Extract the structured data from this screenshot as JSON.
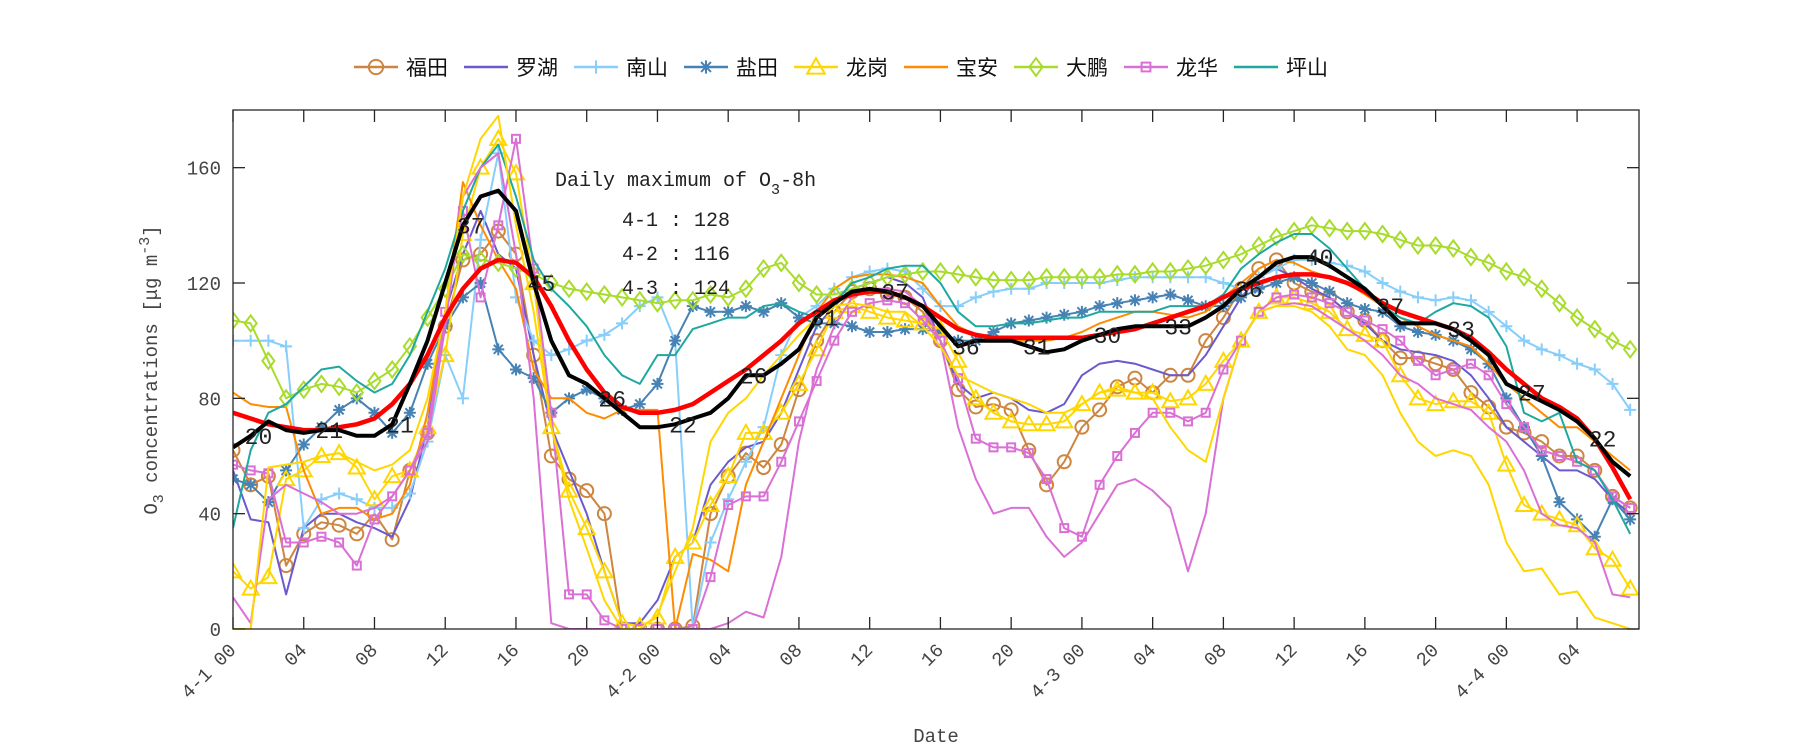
{
  "chart_data": {
    "type": "line",
    "xlabel": "Date",
    "ylabel": "O3 concentrations [μg m-3]",
    "ylabel_parts": {
      "main": "O",
      "sub": "3",
      "mid": " concentrations [",
      "mu": "μg m",
      "sup": "-3",
      "end": "]"
    },
    "ylim": [
      0,
      180
    ],
    "yticks": [
      0,
      40,
      80,
      120,
      160
    ],
    "x_unit": "hour from 4-1 00",
    "xticks": [
      {
        "hour": 0,
        "label": "4-1 00"
      },
      {
        "hour": 4,
        "label": "04"
      },
      {
        "hour": 8,
        "label": "08"
      },
      {
        "hour": 12,
        "label": "12"
      },
      {
        "hour": 16,
        "label": "16"
      },
      {
        "hour": 20,
        "label": "20"
      },
      {
        "hour": 24,
        "label": "4-2 00"
      },
      {
        "hour": 28,
        "label": "04"
      },
      {
        "hour": 32,
        "label": "08"
      },
      {
        "hour": 36,
        "label": "12"
      },
      {
        "hour": 40,
        "label": "16"
      },
      {
        "hour": 44,
        "label": "20"
      },
      {
        "hour": 48,
        "label": "4-3 00"
      },
      {
        "hour": 52,
        "label": "04"
      },
      {
        "hour": 56,
        "label": "08"
      },
      {
        "hour": 60,
        "label": "12"
      },
      {
        "hour": 64,
        "label": "16"
      },
      {
        "hour": 68,
        "label": "20"
      },
      {
        "hour": 72,
        "label": "4-4 00"
      },
      {
        "hour": 76,
        "label": "04"
      }
    ],
    "grid": false,
    "legend_position": "top",
    "series": [
      {
        "name": "福田",
        "color": "#CD853F",
        "marker": "circle",
        "values": [
          62,
          50,
          53,
          22,
          33,
          37,
          36,
          33,
          40,
          31,
          55,
          68,
          105,
          128,
          130,
          138,
          130,
          95,
          60,
          52,
          48,
          40,
          0,
          0,
          0,
          0,
          1,
          40,
          53,
          61,
          56,
          64,
          83,
          100,
          110,
          117,
          118,
          116,
          115,
          110,
          100,
          83,
          77,
          78,
          76,
          62,
          50,
          58,
          70,
          76,
          84,
          87,
          82,
          88,
          88,
          100,
          108,
          118,
          125,
          128,
          120,
          117,
          115,
          110,
          107,
          100,
          94,
          94,
          92,
          90,
          82,
          77,
          70,
          68,
          65,
          60,
          60,
          55,
          46,
          42
        ]
      },
      {
        "name": "罗湖",
        "color": "#6A5ACD",
        "marker": "none",
        "values": [
          55,
          38,
          37,
          12,
          35,
          40,
          40,
          37,
          35,
          32,
          45,
          70,
          110,
          130,
          145,
          130,
          125,
          95,
          70,
          55,
          40,
          20,
          2,
          2,
          10,
          25,
          30,
          50,
          58,
          63,
          65,
          75,
          90,
          105,
          112,
          118,
          120,
          122,
          120,
          115,
          100,
          85,
          80,
          82,
          80,
          76,
          75,
          78,
          88,
          92,
          93,
          92,
          90,
          88,
          88,
          95,
          105,
          115,
          122,
          125,
          122,
          118,
          115,
          110,
          106,
          100,
          97,
          96,
          95,
          93,
          88,
          80,
          70,
          65,
          60,
          55,
          55,
          52,
          45,
          40
        ]
      },
      {
        "name": "南山",
        "color": "#87CEFA",
        "marker": "plus",
        "values": [
          100,
          100,
          100,
          98,
          35,
          45,
          47,
          45,
          42,
          42,
          47,
          65,
          95,
          80,
          135,
          165,
          115,
          100,
          95,
          97,
          100,
          102,
          106,
          112,
          115,
          100,
          0,
          30,
          45,
          58,
          70,
          95,
          108,
          112,
          118,
          122,
          124,
          125,
          124,
          118,
          112,
          112,
          115,
          117,
          118,
          118,
          120,
          120,
          120,
          120,
          121,
          122,
          122,
          122,
          122,
          122,
          120,
          118,
          122,
          125,
          128,
          128,
          127,
          126,
          124,
          120,
          117,
          115,
          114,
          115,
          114,
          110,
          105,
          100,
          97,
          95,
          92,
          90,
          85,
          76
        ]
      },
      {
        "name": "盐田",
        "color": "#4682B4",
        "marker": "asterisk",
        "values": [
          52,
          50,
          44,
          55,
          64,
          70,
          76,
          80,
          75,
          68,
          75,
          92,
          105,
          115,
          120,
          97,
          90,
          87,
          75,
          80,
          83,
          80,
          76,
          78,
          85,
          100,
          112,
          110,
          110,
          112,
          110,
          113,
          108,
          106,
          106,
          105,
          103,
          103,
          104,
          104,
          103,
          100,
          100,
          103,
          106,
          107,
          108,
          109,
          110,
          112,
          113,
          114,
          115,
          116,
          114,
          112,
          112,
          115,
          118,
          120,
          122,
          120,
          117,
          113,
          111,
          110,
          105,
          103,
          102,
          100,
          97,
          92,
          80,
          70,
          60,
          44,
          38,
          32,
          45,
          38
        ]
      },
      {
        "name": "龙岗",
        "color": "#FFD700",
        "marker": "triangle",
        "values": [
          20,
          14,
          18,
          52,
          55,
          60,
          61,
          56,
          45,
          53,
          55,
          70,
          95,
          137,
          160,
          170,
          158,
          120,
          70,
          48,
          35,
          20,
          2,
          1,
          4,
          25,
          30,
          43,
          53,
          68,
          68,
          75,
          85,
          97,
          110,
          112,
          110,
          108,
          107,
          106,
          104,
          93,
          80,
          75,
          72,
          71,
          71,
          72,
          78,
          82,
          83,
          82,
          82,
          79,
          80,
          85,
          93,
          100,
          110,
          115,
          115,
          113,
          110,
          104,
          102,
          100,
          88,
          80,
          78,
          79,
          79,
          75,
          57,
          43,
          40,
          38,
          36,
          28,
          24,
          14
        ]
      },
      {
        "name": "宝安",
        "color": "#FF8C00",
        "marker": "none",
        "values": [
          82,
          78,
          77,
          77,
          55,
          40,
          42,
          42,
          38,
          40,
          50,
          75,
          110,
          155,
          140,
          128,
          118,
          90,
          80,
          80,
          75,
          73,
          76,
          76,
          76,
          0,
          26,
          24,
          20,
          50,
          65,
          80,
          95,
          110,
          118,
          122,
          123,
          123,
          122,
          120,
          112,
          105,
          102,
          100,
          100,
          100,
          100,
          101,
          103,
          106,
          108,
          110,
          110,
          109,
          108,
          110,
          115,
          120,
          125,
          128,
          127,
          124,
          122,
          120,
          116,
          112,
          108,
          105,
          102,
          100,
          98,
          92,
          85,
          80,
          75,
          70,
          70,
          65,
          60,
          55
        ]
      },
      {
        "name": "大鹏",
        "color": "#A8DC2C",
        "marker": "diamond",
        "values": [
          107,
          106,
          93,
          80,
          83,
          85,
          84,
          82,
          86,
          90,
          98,
          108,
          118,
          130,
          128,
          127,
          125,
          123,
          120,
          118,
          117,
          116,
          115,
          114,
          113,
          114,
          114,
          116,
          115,
          118,
          125,
          127,
          120,
          116,
          116,
          118,
          120,
          122,
          123,
          124,
          124,
          123,
          122,
          121,
          121,
          121,
          122,
          122,
          122,
          122,
          123,
          123,
          124,
          124,
          125,
          126,
          128,
          130,
          133,
          136,
          138,
          140,
          139,
          138,
          138,
          137,
          135,
          133,
          133,
          132,
          129,
          127,
          124,
          122,
          118,
          113,
          108,
          104,
          100,
          97
        ]
      },
      {
        "name": "龙华",
        "color": "#DA70D6",
        "marker": "square",
        "values": [
          57,
          55,
          54,
          30,
          30,
          32,
          30,
          22,
          38,
          46,
          55,
          68,
          110,
          145,
          115,
          140,
          170,
          125,
          75,
          12,
          12,
          3,
          0,
          0,
          0,
          0,
          0,
          18,
          43,
          46,
          46,
          58,
          72,
          86,
          100,
          110,
          113,
          114,
          113,
          107,
          100,
          87,
          66,
          63,
          63,
          61,
          52,
          35,
          32,
          50,
          60,
          68,
          75,
          75,
          72,
          75,
          90,
          100,
          110,
          115,
          116,
          115,
          113,
          110,
          107,
          104,
          100,
          93,
          88,
          90,
          92,
          88,
          78,
          70,
          62,
          60,
          58,
          55,
          46,
          42
        ]
      },
      {
        "name": "坪山",
        "color": "#1FA89F",
        "marker": "none",
        "values": [
          35,
          62,
          75,
          78,
          84,
          90,
          91,
          86,
          82,
          85,
          95,
          110,
          125,
          145,
          160,
          168,
          150,
          128,
          118,
          112,
          105,
          95,
          88,
          85,
          95,
          95,
          104,
          106,
          108,
          108,
          112,
          113,
          110,
          108,
          113,
          120,
          122,
          125,
          126,
          126,
          120,
          110,
          105,
          105,
          106,
          106,
          107,
          108,
          108,
          110,
          110,
          110,
          110,
          112,
          112,
          112,
          116,
          125,
          130,
          134,
          137,
          137,
          132,
          125,
          118,
          112,
          108,
          106,
          110,
          113,
          112,
          108,
          98,
          75,
          72,
          75,
          58,
          55,
          45,
          33
        ]
      },
      {
        "color": "#DA70D6",
        "marker": "none",
        "values": [
          11,
          2,
          45,
          50,
          47,
          44,
          40,
          40,
          42,
          46,
          55,
          65,
          105,
          150,
          160,
          165,
          130,
          80,
          2,
          0,
          0,
          0,
          0,
          0,
          0,
          0,
          0,
          0,
          2,
          6,
          4,
          25,
          65,
          90,
          105,
          115,
          118,
          118,
          117,
          112,
          100,
          70,
          52,
          40,
          42,
          42,
          32,
          25,
          30,
          40,
          50,
          52,
          48,
          42,
          20,
          40,
          80,
          100,
          110,
          112,
          113,
          112,
          108,
          104,
          100,
          95,
          88,
          85,
          80,
          78,
          76,
          70,
          65,
          55,
          40,
          36,
          35,
          30,
          12,
          11
        ]
      },
      {
        "color": "#FFD700",
        "marker": "none",
        "values": [
          0,
          0,
          56,
          57,
          58,
          60,
          61,
          58,
          55,
          57,
          62,
          80,
          110,
          150,
          170,
          178,
          140,
          110,
          70,
          45,
          28,
          10,
          0,
          0,
          5,
          20,
          35,
          65,
          75,
          80,
          88,
          95,
          102,
          108,
          112,
          113,
          112,
          110,
          110,
          105,
          98,
          88,
          85,
          82,
          80,
          78,
          75,
          75,
          78,
          82,
          84,
          82,
          80,
          70,
          62,
          58,
          80,
          100,
          110,
          112,
          112,
          110,
          105,
          97,
          95,
          88,
          75,
          65,
          60,
          62,
          60,
          50,
          30,
          20,
          21,
          12,
          13,
          4,
          2,
          0
        ]
      },
      {
        "color": "#FF0000",
        "marker": "none",
        "emphasis": "thick",
        "values": [
          75,
          73,
          71,
          70,
          69,
          69,
          70,
          71,
          73,
          78,
          85,
          95,
          108,
          118,
          125,
          128,
          127,
          122,
          112,
          100,
          90,
          82,
          77,
          75,
          75,
          76,
          78,
          82,
          86,
          90,
          95,
          100,
          106,
          110,
          114,
          116,
          117,
          117,
          115,
          112,
          108,
          104,
          102,
          101,
          101,
          101,
          101,
          101,
          101,
          102,
          103,
          104,
          106,
          108,
          110,
          112,
          115,
          118,
          120,
          122,
          123,
          123,
          122,
          120,
          117,
          113,
          110,
          108,
          106,
          104,
          101,
          96,
          90,
          85,
          80,
          77,
          73,
          66,
          56,
          45
        ]
      },
      {
        "color": "#000000",
        "marker": "none",
        "emphasis": "thick",
        "values": [
          63,
          67,
          72,
          69,
          68,
          69,
          69,
          67,
          67,
          71,
          85,
          100,
          120,
          140,
          150,
          152,
          145,
          120,
          100,
          88,
          85,
          80,
          75,
          70,
          70,
          71,
          73,
          75,
          80,
          88,
          88,
          92,
          97,
          108,
          113,
          117,
          118,
          117,
          115,
          112,
          105,
          98,
          100,
          100,
          100,
          98,
          96,
          97,
          100,
          102,
          104,
          105,
          105,
          105,
          105,
          108,
          112,
          118,
          122,
          127,
          129,
          129,
          126,
          122,
          118,
          112,
          106,
          106,
          106,
          104,
          100,
          95,
          85,
          82,
          79,
          76,
          72,
          66,
          58,
          53
        ]
      }
    ],
    "annotations": [
      {
        "hour": 1,
        "text": "20"
      },
      {
        "hour": 5,
        "text": "21"
      },
      {
        "hour": 9,
        "text": "21"
      },
      {
        "hour": 13,
        "text": "37"
      },
      {
        "hour": 17,
        "text": "45"
      },
      {
        "hour": 21,
        "text": "26"
      },
      {
        "hour": 25,
        "text": "22"
      },
      {
        "hour": 29,
        "text": "26"
      },
      {
        "hour": 33,
        "text": "31"
      },
      {
        "hour": 37,
        "text": "37"
      },
      {
        "hour": 41,
        "text": "36"
      },
      {
        "hour": 45,
        "text": "31"
      },
      {
        "hour": 49,
        "text": "30"
      },
      {
        "hour": 53,
        "text": "33"
      },
      {
        "hour": 57,
        "text": "36"
      },
      {
        "hour": 61,
        "text": "40"
      },
      {
        "hour": 65,
        "text": "37"
      },
      {
        "hour": 69,
        "text": "33"
      },
      {
        "hour": 73,
        "text": "27"
      },
      {
        "hour": 77,
        "text": "22"
      }
    ],
    "note": {
      "title_main": "Daily maximum of O",
      "title_sub": "3",
      "title_end": "-8h",
      "lines": [
        "4-1 : 128",
        "4-2 : 116",
        "4-3 : 124"
      ]
    }
  }
}
